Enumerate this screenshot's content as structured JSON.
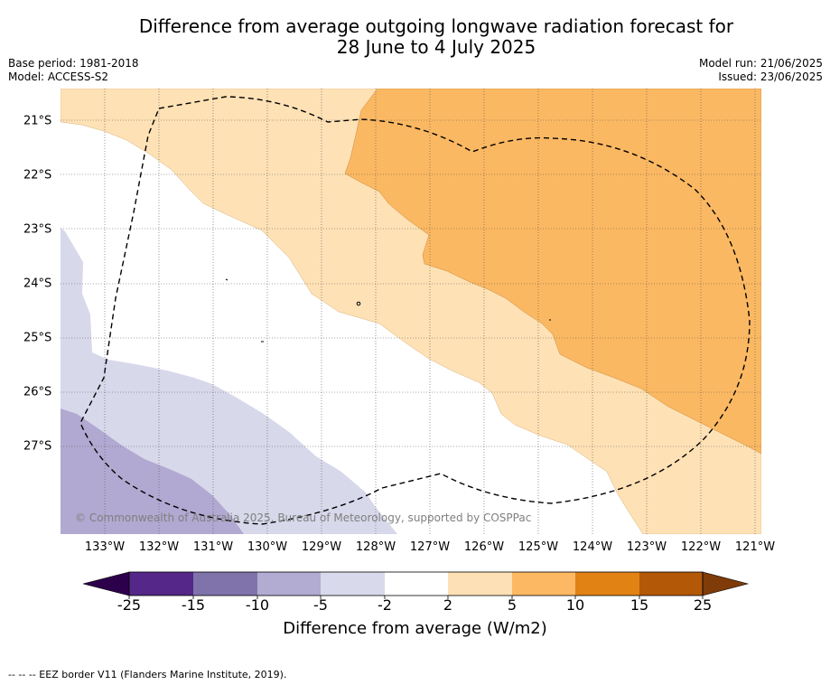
{
  "header": {
    "title_line1": "Difference from average outgoing longwave radiation forecast for",
    "title_line2": "28 June to 4 July 2025",
    "base_period": "Base period: 1981-2018",
    "model": "Model: ACCESS-S2",
    "model_run": "Model run: 21/06/2025",
    "issued": "Issued: 23/06/2025"
  },
  "map": {
    "longitudes": [
      "133°W",
      "132°W",
      "131°W",
      "130°W",
      "129°W",
      "128°W",
      "127°W",
      "126°W",
      "125°W",
      "124°W",
      "123°W",
      "122°W",
      "121°W"
    ],
    "latitudes": [
      "21°S",
      "22°S",
      "23°S",
      "24°S",
      "25°S",
      "26°S",
      "27°S"
    ],
    "copyright": "© Commonwealth of Australia 2025, Bureau of Meteorology, supported by COSPPac",
    "colors": {
      "strong_negative": "#b1a9d1",
      "weak_negative": "#d8d8eb",
      "neutral": "#ffffff",
      "weak_positive": "#fee1b5",
      "moderate_positive": "#fbb862"
    }
  },
  "colorbar": {
    "title": "Difference from average (W/m2)",
    "ticks": [
      "-25",
      "-15",
      "-10",
      "-5",
      "-2",
      "2",
      "5",
      "10",
      "15",
      "25"
    ],
    "colors": {
      "extend_low": "#2d004b",
      "c1": "#542788",
      "c2": "#8073ac",
      "c3": "#b2abd2",
      "c4": "#d8daeb",
      "c5": "#ffffff",
      "c6": "#fee0b6",
      "c7": "#fdb863",
      "c8": "#e08214",
      "c9": "#b35806",
      "extend_high": "#7f3b08"
    }
  },
  "footnote": "--  --  -- EEZ border V11 (Flanders Marine Institute, 2019)."
}
